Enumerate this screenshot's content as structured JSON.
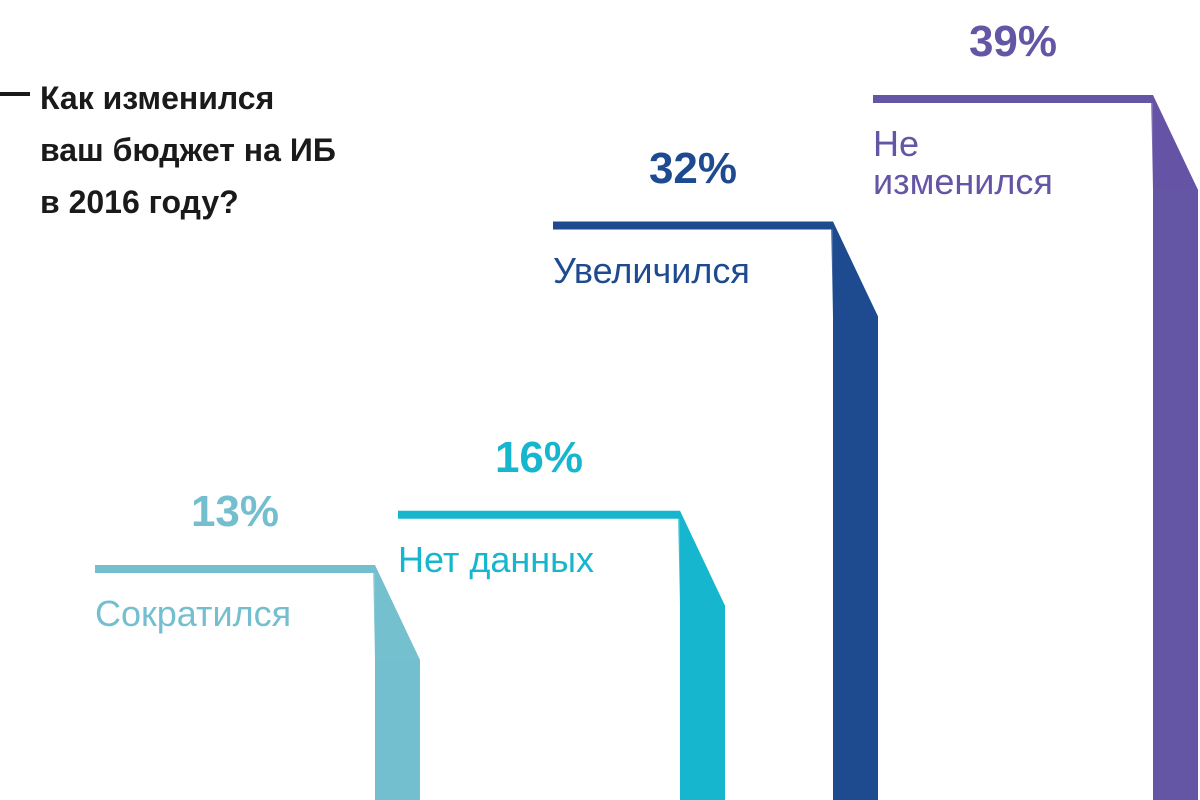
{
  "chart_data": {
    "type": "step-bar",
    "title": "Как изменился ваш бюджет на ИБ в 2016 году?",
    "categories": [
      "Сократился",
      "Нет данных",
      "Увеличился",
      "Не изменился"
    ],
    "values": [
      13,
      16,
      32,
      39
    ],
    "value_labels": [
      "13%",
      "16%",
      "32%",
      "39%"
    ],
    "colors": [
      "#74bfcf",
      "#17b6cf",
      "#1e4b8f",
      "#6555a5"
    ]
  }
}
